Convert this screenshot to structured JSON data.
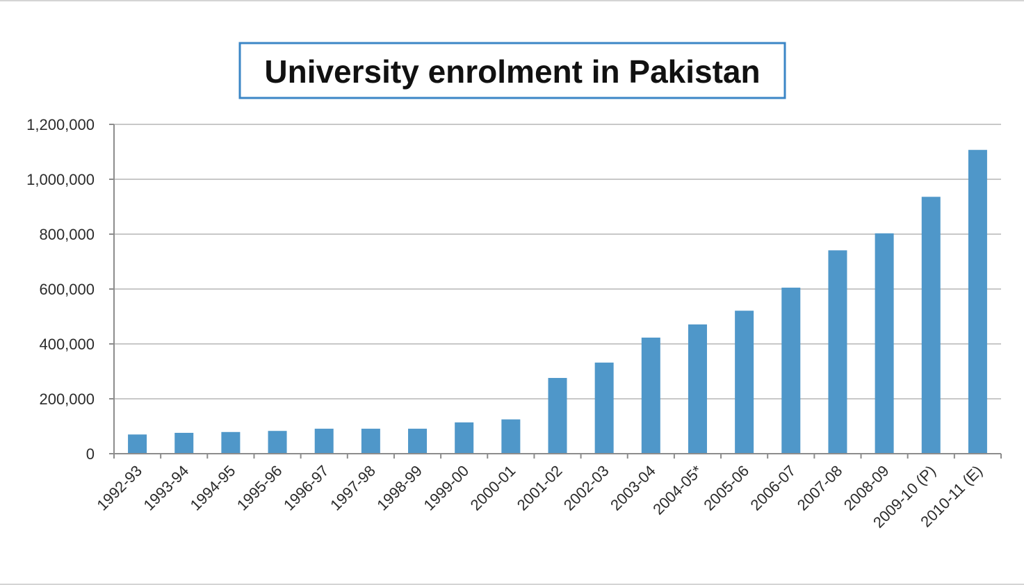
{
  "chart_data": {
    "type": "bar",
    "title": "University enrolment in Pakistan",
    "xlabel": "",
    "ylabel": "",
    "categories": [
      "1992-93",
      "1993-94",
      "1994-95",
      "1995-96",
      "1996-97",
      "1997-98",
      "1998-99",
      "1999-00",
      "2000-01",
      "2001-02",
      "2002-03",
      "2003-04",
      "2004-05*",
      "2005-06",
      "2006-07",
      "2007-08",
      "2008-09",
      "2009-10 (P)",
      "2010-11 (E)"
    ],
    "values": [
      70000,
      76000,
      79000,
      83000,
      91000,
      91000,
      91000,
      114000,
      125000,
      276000,
      332000,
      423000,
      471000,
      521000,
      605000,
      741000,
      803000,
      936000,
      1107000
    ],
    "ylim": [
      0,
      1200000
    ],
    "yticks": [
      0,
      200000,
      400000,
      600000,
      800000,
      1000000,
      1200000
    ],
    "ytick_labels": [
      "0",
      "200,000",
      "400,000",
      "600,000",
      "800,000",
      "1,000,000",
      "1,200,000"
    ],
    "grid": true,
    "legend": "none",
    "colors": {
      "bar": "#4f97c9",
      "grid": "#c8c8c8",
      "axis": "#8c8c8c",
      "title_border": "#3b86c6"
    }
  }
}
